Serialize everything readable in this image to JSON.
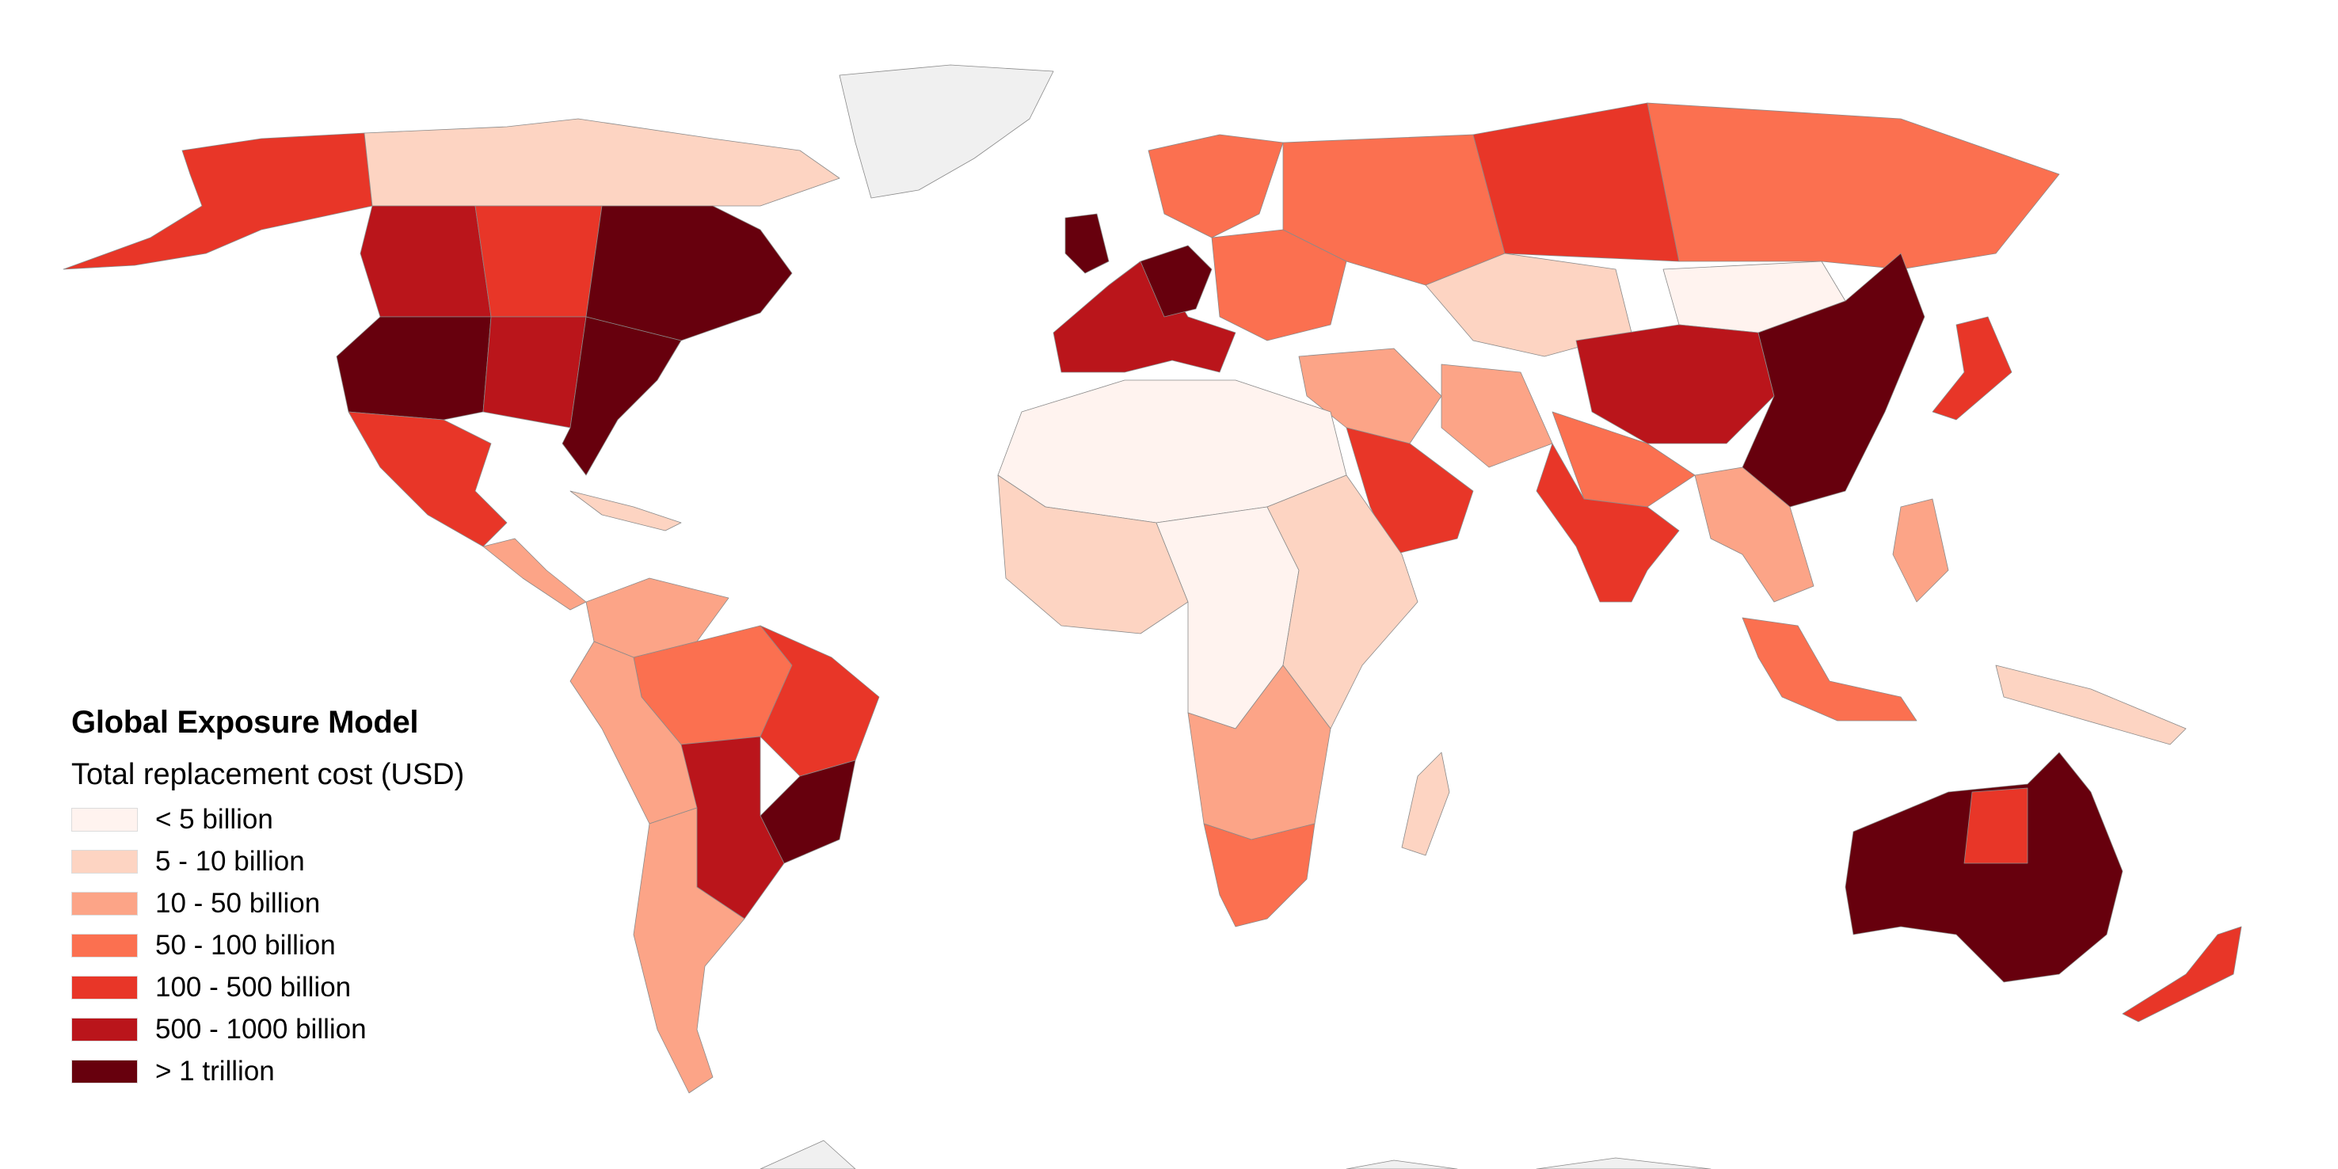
{
  "legend": {
    "title": "Global Exposure Model",
    "subtitle": "Total replacement cost (USD)",
    "items": [
      {
        "label": "< 5 billion",
        "color": "#fff3ef"
      },
      {
        "label": "5 - 10 billion",
        "color": "#fdd4c2"
      },
      {
        "label": "10 - 50 billion",
        "color": "#fca487"
      },
      {
        "label": "50 - 100 billion",
        "color": "#fb7050"
      },
      {
        "label": "100 - 500 billion",
        "color": "#e83628"
      },
      {
        "label": "500 - 1000 billion",
        "color": "#ba151b"
      },
      {
        "label": "> 1 trillion",
        "color": "#67000d"
      }
    ]
  },
  "map": {
    "no_data_color": "#f0f0f0",
    "regions": [
      {
        "name": "usa-east",
        "class": 6
      },
      {
        "name": "usa-west",
        "class": 6
      },
      {
        "name": "usa-central",
        "class": 5
      },
      {
        "name": "canada-east",
        "class": 6
      },
      {
        "name": "canada-west",
        "class": 5
      },
      {
        "name": "canada-prairies",
        "class": 4
      },
      {
        "name": "canada-north",
        "class": 1
      },
      {
        "name": "alaska",
        "class": 4
      },
      {
        "name": "greenland",
        "class": -1
      },
      {
        "name": "mexico",
        "class": 4
      },
      {
        "name": "central-america",
        "class": 2
      },
      {
        "name": "caribbean",
        "class": 1
      },
      {
        "name": "colombia-venezuela",
        "class": 2
      },
      {
        "name": "brazil-north",
        "class": 3
      },
      {
        "name": "brazil-northeast",
        "class": 4
      },
      {
        "name": "brazil-southeast",
        "class": 6
      },
      {
        "name": "brazil-south",
        "class": 5
      },
      {
        "name": "peru-bolivia",
        "class": 2
      },
      {
        "name": "argentina-chile",
        "class": 2
      },
      {
        "name": "western-europe",
        "class": 5
      },
      {
        "name": "uk",
        "class": 6
      },
      {
        "name": "germany",
        "class": 6
      },
      {
        "name": "scandinavia",
        "class": 3
      },
      {
        "name": "eastern-europe",
        "class": 3
      },
      {
        "name": "russia-west",
        "class": 3
      },
      {
        "name": "russia-central",
        "class": 4
      },
      {
        "name": "russia-east",
        "class": 3
      },
      {
        "name": "kazakhstan",
        "class": 1
      },
      {
        "name": "middle-east",
        "class": 2
      },
      {
        "name": "saudi-arabia",
        "class": 4
      },
      {
        "name": "iran",
        "class": 2
      },
      {
        "name": "north-africa",
        "class": 0
      },
      {
        "name": "west-africa",
        "class": 1
      },
      {
        "name": "central-africa",
        "class": 0
      },
      {
        "name": "east-africa",
        "class": 1
      },
      {
        "name": "southern-africa",
        "class": 2
      },
      {
        "name": "south-africa",
        "class": 3
      },
      {
        "name": "madagascar",
        "class": 1
      },
      {
        "name": "india",
        "class": 4
      },
      {
        "name": "india-north",
        "class": 3
      },
      {
        "name": "china-west",
        "class": 5
      },
      {
        "name": "china-east",
        "class": 6
      },
      {
        "name": "mongolia",
        "class": 0
      },
      {
        "name": "japan",
        "class": 4
      },
      {
        "name": "southeast-asia",
        "class": 2
      },
      {
        "name": "indonesia",
        "class": 3
      },
      {
        "name": "philippines",
        "class": 2
      },
      {
        "name": "papua",
        "class": 1
      },
      {
        "name": "australia",
        "class": 6
      },
      {
        "name": "australia-center",
        "class": 4
      },
      {
        "name": "new-zealand",
        "class": 4
      },
      {
        "name": "antarctica",
        "class": -1
      }
    ]
  }
}
